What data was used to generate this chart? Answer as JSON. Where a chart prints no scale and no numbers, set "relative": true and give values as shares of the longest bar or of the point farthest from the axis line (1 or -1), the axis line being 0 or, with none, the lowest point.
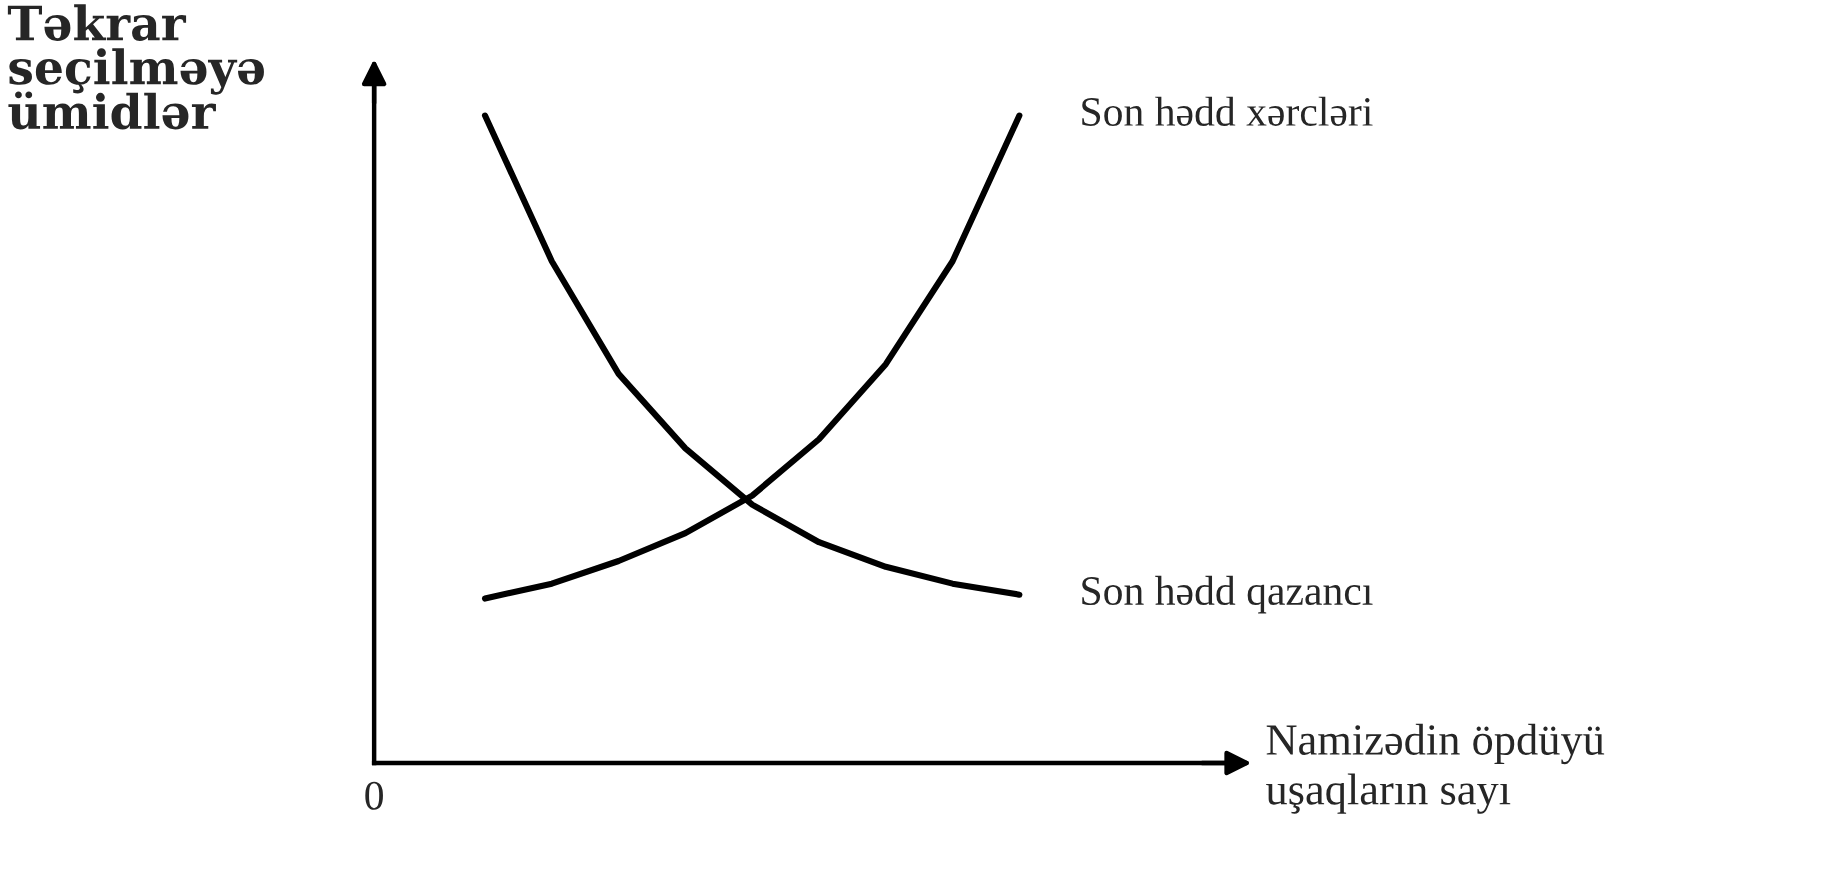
{
  "chart_data": {
    "type": "line",
    "relative": true,
    "ylabel": "Təkrar\nseçilməyə\nümidlər",
    "xlabel": "Namizədin öpdüyü\nuşaqların sayı",
    "annotations": [
      "0"
    ],
    "legend": false,
    "grid": false,
    "marker": "none",
    "line_style": "solid",
    "categories": [
      null,
      null,
      null,
      null,
      null,
      null,
      null,
      null,
      null
    ],
    "series": [
      {
        "name": "Son hədd xərcləri",
        "color": "#000000",
        "values": [
          0.254,
          0.277,
          0.312,
          0.355,
          0.413,
          0.5,
          0.616,
          0.775,
          1
        ]
      },
      {
        "name": "Son hədd qazancı",
        "color": "#000000",
        "values": [
          1,
          0.775,
          0.601,
          0.486,
          0.399,
          0.341,
          0.303,
          0.277,
          0.26
        ]
      }
    ]
  }
}
